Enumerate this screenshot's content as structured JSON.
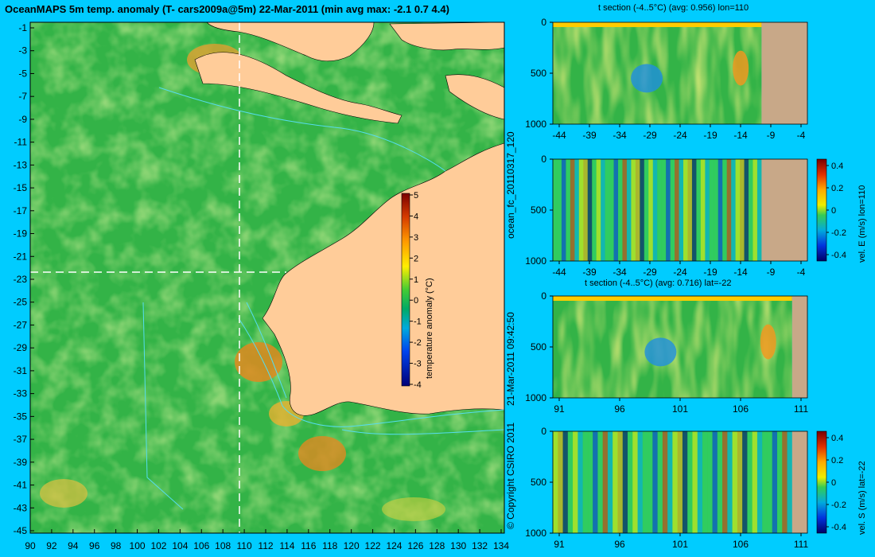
{
  "map": {
    "title": "OceanMAPS 5m temp. anomaly (T- cars2009a@5m) 22-Mar-2011 (min avg max: -2.1 0.7 4.4)",
    "lat_ticks": [
      "-1",
      "-3",
      "-5",
      "-7",
      "-9",
      "-11",
      "-13",
      "-15",
      "-17",
      "-19",
      "-21",
      "-23",
      "-25",
      "-27",
      "-29",
      "-31",
      "-33",
      "-35",
      "-37",
      "-39",
      "-41",
      "-43",
      "-45"
    ],
    "lon_ticks": [
      "90",
      "92",
      "94",
      "96",
      "98",
      "100",
      "102",
      "104",
      "106",
      "108",
      "110",
      "112",
      "114",
      "116",
      "118",
      "120",
      "122",
      "124",
      "126",
      "128",
      "130",
      "132",
      "134"
    ],
    "colorbar": {
      "label": "temperature anomaly (°C)",
      "ticks": [
        "5",
        "4",
        "3",
        "2",
        "1",
        "0",
        "-1",
        "-2",
        "-3",
        "-4"
      ]
    },
    "colors": {
      "ocean": "#33b347",
      "land": "#ffcc99",
      "contour": "#55ddee",
      "section_line": "#ffffff"
    }
  },
  "side_text": {
    "forecast_id": "ocean_fc_20110317_120",
    "timestamp": "21-Mar-2011 09:42:50",
    "copyright": "© Copyright CSIRO 2011"
  },
  "chart_data": [
    {
      "type": "heatmap",
      "title": "t section (-4..5°C) (avg: 0.956) lon=110",
      "x_ticks": [
        "-44",
        "-39",
        "-34",
        "-29",
        "-24",
        "-19",
        "-14",
        "-9",
        "-4"
      ],
      "y_ticks": [
        "0",
        "500",
        "1000"
      ]
    },
    {
      "type": "heatmap",
      "title": "",
      "x_ticks": [
        "-44",
        "-39",
        "-34",
        "-29",
        "-24",
        "-19",
        "-14",
        "-9",
        "-4"
      ],
      "y_ticks": [
        "0",
        "500",
        "1000"
      ],
      "colorbar_label": "vel. E (m/s) lon=110",
      "colorbar_ticks": [
        "0.4",
        "0.2",
        "0",
        "-0.2",
        "-0.4"
      ]
    },
    {
      "type": "heatmap",
      "title": "t section (-4..5°C) (avg: 0.716) lat=-22",
      "x_ticks": [
        "91",
        "96",
        "101",
        "106",
        "111"
      ],
      "y_ticks": [
        "0",
        "500",
        "1000"
      ]
    },
    {
      "type": "heatmap",
      "title": "",
      "x_ticks": [
        "91",
        "96",
        "101",
        "106",
        "111"
      ],
      "y_ticks": [
        "0",
        "500",
        "1000"
      ],
      "colorbar_label": "vel. S (m/s) lat=-22",
      "colorbar_ticks": [
        "0.4",
        "0.2",
        "0",
        "-0.2",
        "-0.4"
      ]
    }
  ]
}
